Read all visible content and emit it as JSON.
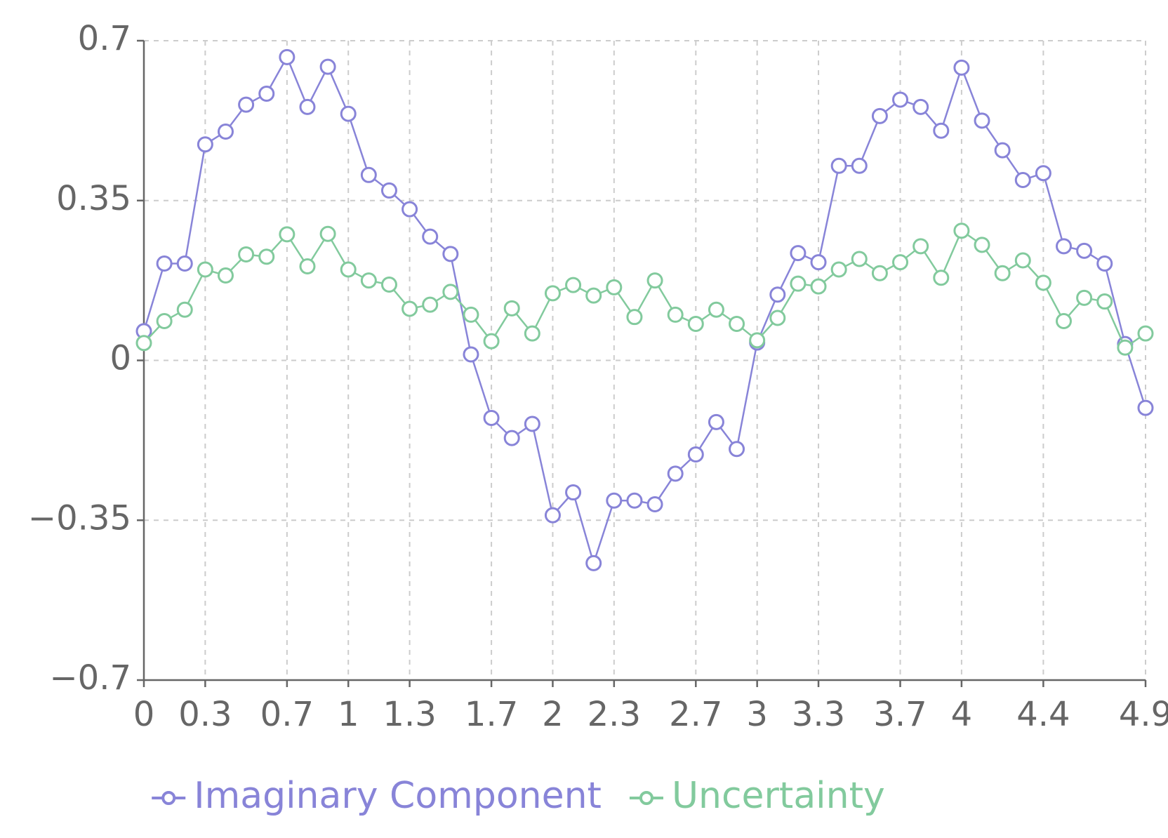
{
  "chart_data": {
    "type": "line",
    "x": [
      0,
      0.1,
      0.2,
      0.3,
      0.4,
      0.5,
      0.6,
      0.7,
      0.8,
      0.9,
      1,
      1.1,
      1.2,
      1.3,
      1.4,
      1.5,
      1.6,
      1.7,
      1.8,
      1.9,
      2,
      2.1,
      2.2,
      2.3,
      2.4,
      2.5,
      2.6,
      2.7,
      2.8,
      2.9,
      3,
      3.1,
      3.2,
      3.3,
      3.4,
      3.5,
      3.6,
      3.7,
      3.8,
      3.9,
      4,
      4.1,
      4.2,
      4.3,
      4.4,
      4.5,
      4.6,
      4.7,
      4.8,
      4.9
    ],
    "series": [
      {
        "name": "Imaginary Component",
        "color": "#8884d8",
        "values": [
          0.064,
          0.212,
          0.212,
          0.473,
          0.501,
          0.56,
          0.584,
          0.664,
          0.555,
          0.643,
          0.54,
          0.406,
          0.372,
          0.331,
          0.271,
          0.233,
          0.013,
          -0.126,
          -0.17,
          -0.139,
          -0.339,
          -0.289,
          -0.444,
          -0.307,
          -0.307,
          -0.315,
          -0.248,
          -0.206,
          -0.135,
          -0.194,
          0.039,
          0.144,
          0.235,
          0.215,
          0.426,
          0.426,
          0.535,
          0.571,
          0.555,
          0.503,
          0.641,
          0.525,
          0.46,
          0.395,
          0.41,
          0.25,
          0.24,
          0.212,
          0.036,
          -0.104
        ]
      },
      {
        "name": "Uncertainty",
        "color": "#82ca9d",
        "values": [
          0.038,
          0.086,
          0.111,
          0.199,
          0.186,
          0.232,
          0.227,
          0.276,
          0.206,
          0.277,
          0.199,
          0.175,
          0.166,
          0.113,
          0.122,
          0.15,
          0.1,
          0.042,
          0.114,
          0.059,
          0.147,
          0.165,
          0.142,
          0.16,
          0.095,
          0.175,
          0.1,
          0.08,
          0.111,
          0.08,
          0.044,
          0.093,
          0.168,
          0.162,
          0.199,
          0.222,
          0.191,
          0.215,
          0.25,
          0.181,
          0.284,
          0.253,
          0.191,
          0.219,
          0.17,
          0.086,
          0.137,
          0.129,
          0.028,
          0.059
        ]
      }
    ],
    "xlim": [
      0,
      4.9
    ],
    "xticks": [
      0,
      0.3,
      0.7,
      1,
      1.3,
      1.7,
      2,
      2.3,
      2.7,
      3,
      3.3,
      3.7,
      4,
      4.4,
      4.9
    ],
    "ylim": [
      -0.7,
      0.7
    ],
    "yticks": [
      {
        "value": -0.7,
        "label": "−0.7"
      },
      {
        "value": -0.35,
        "label": "−0.35"
      },
      0,
      0.35,
      0.7
    ],
    "grid": true,
    "legend": "bottom"
  }
}
